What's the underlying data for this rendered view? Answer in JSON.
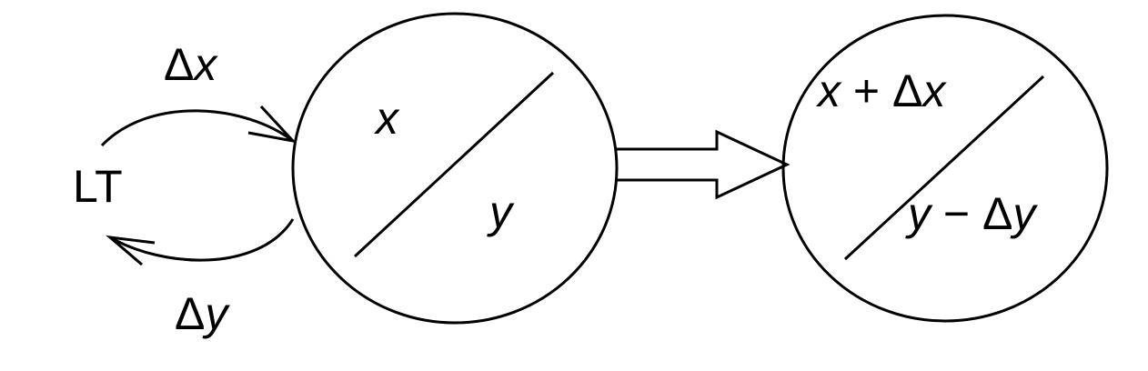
{
  "diagram": {
    "lt_label": "LT",
    "dx_delta": "Δ",
    "dx_var": "x",
    "dy_delta": "Δ",
    "dy_var": "y",
    "left_circle": {
      "top_var": "x",
      "bottom_var": "y"
    },
    "right_circle": {
      "top_var": "x",
      "top_op": " + Δ",
      "top_var2": "x",
      "bottom_var": "y",
      "bottom_op": " − Δ",
      "bottom_var2": "y"
    },
    "stroke_color": "#000000",
    "background_color": "#ffffff"
  }
}
